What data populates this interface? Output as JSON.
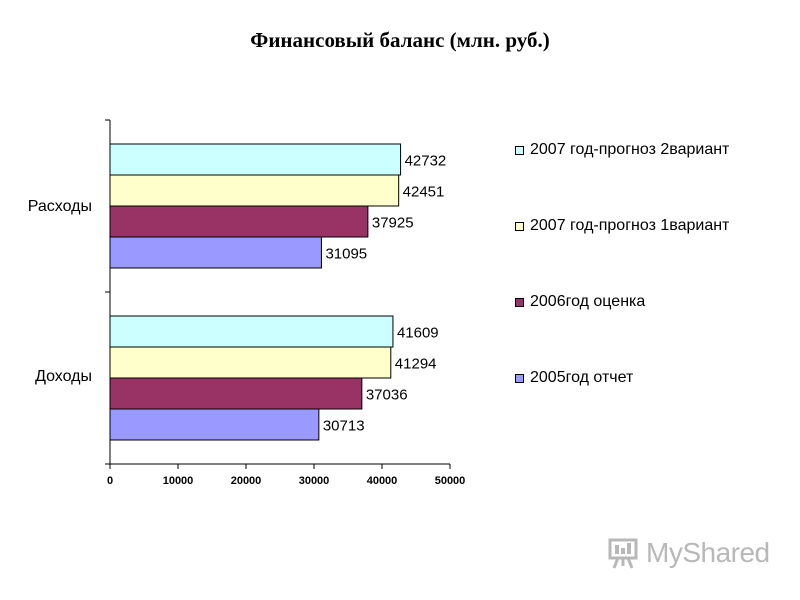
{
  "chart_data": {
    "type": "bar",
    "orientation": "horizontal",
    "title": "Финансовый баланс (млн. руб.)",
    "categories": [
      "Расходы",
      "Доходы"
    ],
    "series": [
      {
        "name": "2007 год-прогноз 2вариант",
        "color": "#ccffff",
        "values": [
          42732,
          41609
        ]
      },
      {
        "name": "2007 год-прогноз 1вариант",
        "color": "#ffffcc",
        "values": [
          42451,
          41294
        ]
      },
      {
        "name": "2006год оценка",
        "color": "#993366",
        "values": [
          37925,
          37036
        ]
      },
      {
        "name": "2005год отчет",
        "color": "#9999ff",
        "values": [
          31095,
          30713
        ]
      }
    ],
    "xlim": [
      0,
      50000
    ],
    "xticks": [
      "0",
      "10000",
      "20000",
      "30000",
      "40000",
      "50000"
    ],
    "legend_position": "right",
    "grid": false
  },
  "watermark": {
    "text": "MyShared",
    "icon": "presentation-board-icon"
  }
}
